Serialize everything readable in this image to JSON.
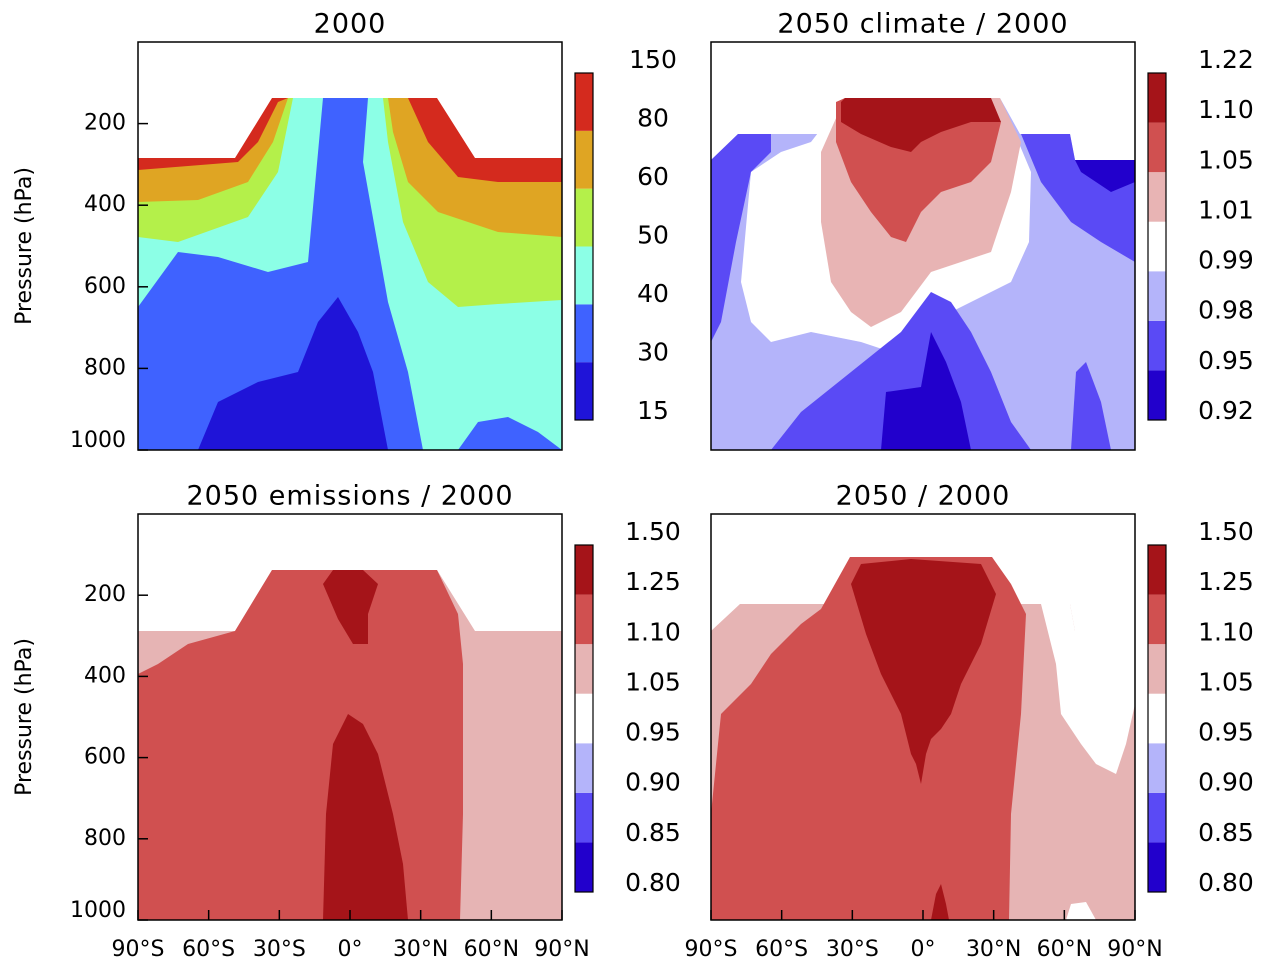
{
  "chart_data": [
    {
      "type": "contour",
      "title": "2000",
      "ylabel": "Pressure (hPa)",
      "xlim": [
        -90,
        90
      ],
      "ylim": [
        1000,
        0
      ],
      "yticks": [
        200,
        400,
        600,
        800,
        1000
      ],
      "levels": [
        15,
        30,
        40,
        50,
        60,
        80,
        150
      ],
      "colors": [
        "#1f14d8",
        "#3f62ff",
        "#8cffe6",
        "#b4f04a",
        "#dfa523",
        "#d42a1e"
      ]
    },
    {
      "type": "contour",
      "title": "2050 climate / 2000",
      "xlim": [
        -90,
        90
      ],
      "ylim": [
        1000,
        0
      ],
      "levels": [
        0.92,
        0.95,
        0.98,
        0.99,
        1.01,
        1.05,
        {
          "value": 1.1,
          "label": "1.10"
        },
        1.22
      ],
      "colors": [
        "#2200cc",
        "#5a4af5",
        "#b4b4fa",
        "#ffffff",
        "#e8b4b4",
        "#d05050",
        "#a51419"
      ]
    },
    {
      "type": "contour",
      "title": "2050 emissions / 2000",
      "ylabel": "Pressure (hPa)",
      "xlim": [
        -90,
        90
      ],
      "ylim": [
        1000,
        0
      ],
      "yticks": [
        200,
        400,
        600,
        800,
        1000
      ],
      "xticks": [
        {
          "value": -90,
          "label": "90°S"
        },
        {
          "value": -60,
          "label": "60°S"
        },
        {
          "value": -30,
          "label": "30°S"
        },
        {
          "value": 0,
          "label": "0°"
        },
        {
          "value": 30,
          "label": "30°N"
        },
        {
          "value": 60,
          "label": "60°N"
        },
        {
          "value": 90,
          "label": "90°N"
        }
      ],
      "levels": [
        {
          "value": 0.8,
          "label": "0.80"
        },
        0.85,
        {
          "value": 0.9,
          "label": "0.90"
        },
        0.95,
        1.05,
        {
          "value": 1.1,
          "label": "1.10"
        },
        1.25,
        {
          "value": 1.5,
          "label": "1.50"
        }
      ],
      "colors": [
        "#2200cc",
        "#5a4af5",
        "#b4b4fa",
        "#ffffff",
        "#e6b4b4",
        "#d05050",
        "#a51419"
      ]
    },
    {
      "type": "contour",
      "title": "2050 / 2000",
      "xlim": [
        -90,
        90
      ],
      "ylim": [
        1000,
        0
      ],
      "xticks": [
        {
          "value": -90,
          "label": "90°S"
        },
        {
          "value": -60,
          "label": "60°S"
        },
        {
          "value": -30,
          "label": "30°S"
        },
        {
          "value": 0,
          "label": "0°"
        },
        {
          "value": 30,
          "label": "30°N"
        },
        {
          "value": 60,
          "label": "60°N"
        },
        {
          "value": 90,
          "label": "90°N"
        }
      ],
      "levels": [
        {
          "value": 0.8,
          "label": "0.80"
        },
        0.85,
        {
          "value": 0.9,
          "label": "0.90"
        },
        0.95,
        1.05,
        {
          "value": 1.1,
          "label": "1.10"
        },
        1.25,
        {
          "value": 1.5,
          "label": "1.50"
        }
      ],
      "colors": [
        "#2200cc",
        "#5a4af5",
        "#b4b4fa",
        "#ffffff",
        "#e6b4b4",
        "#d05050",
        "#a51419"
      ]
    }
  ]
}
